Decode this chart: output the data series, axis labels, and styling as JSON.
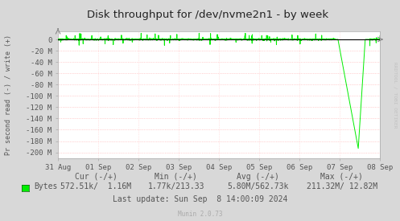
{
  "title": "Disk throughput for /dev/nvme2n1 - by week",
  "ylabel": "Pr second read (-) / write (+)",
  "background_color": "#d8d8d8",
  "plot_bg_color": "#ffffff",
  "grid_color_h": "#ffaaaa",
  "grid_color_v": "#ffcccc",
  "line_color": "#00ee00",
  "axis_color": "#000000",
  "ylim": [
    -210,
    15
  ],
  "yticks": [
    0,
    -20,
    -40,
    -60,
    -80,
    -100,
    -120,
    -140,
    -160,
    -180,
    -200
  ],
  "ytick_labels": [
    "0",
    "-20 M",
    "-40 M",
    "-60 M",
    "-80 M",
    "-100 M",
    "-120 M",
    "-140 M",
    "-160 M",
    "-180 M",
    "-200 M"
  ],
  "xlabel_dates": [
    "31 Aug",
    "01 Sep",
    "02 Sep",
    "03 Sep",
    "04 Sep",
    "05 Sep",
    "06 Sep",
    "07 Sep",
    "08 Sep"
  ],
  "watermark": "RRDTOOL / TOBI OETIKER",
  "legend_label": "Bytes",
  "cur_label": "Cur (-/+)",
  "cur_val": "572.51k/  1.16M",
  "min_label": "Min (-/+)",
  "min_val": "1.77k/213.33",
  "avg_label": "Avg (-/+)",
  "avg_val": "5.80M/562.73k",
  "max_label": "Max (-/+)",
  "max_val": "211.32M/ 12.82M",
  "last_update": "Last update: Sun Sep  8 14:00:09 2024",
  "munin_version": "Munin 2.0.73",
  "title_color": "#222222",
  "text_color": "#555555",
  "legend_color": "#555555"
}
